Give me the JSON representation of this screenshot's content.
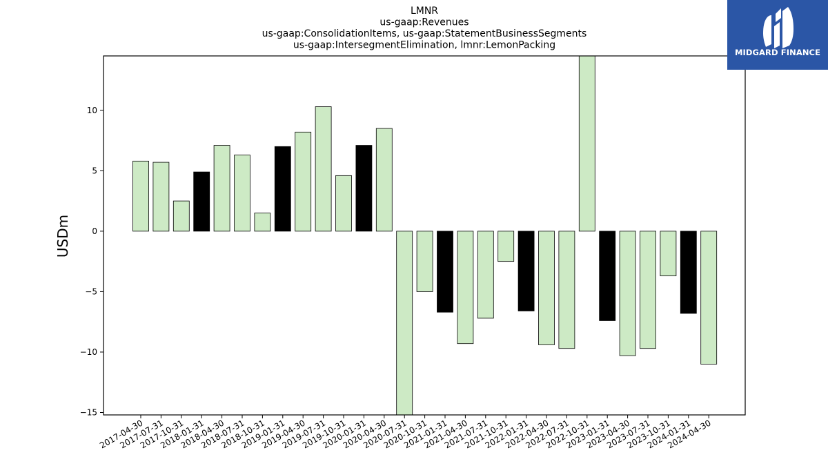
{
  "chart_data": {
    "type": "bar",
    "title_lines": [
      "LMNR",
      "us-gaap:Revenues",
      "us-gaap:ConsolidationItems, us-gaap:StatementBusinessSegments",
      "us-gaap:IntersegmentElimination, lmnr:LemonPacking"
    ],
    "ylabel": "USDm",
    "ylim": [
      -15.2,
      14.5
    ],
    "yticks": [
      -15,
      -10,
      -5,
      0,
      5,
      10
    ],
    "ytick_labels": [
      "−15",
      "−10",
      "−5",
      "0",
      "5",
      "10"
    ],
    "categories": [
      "2017-04-30",
      "2017-07-31",
      "2017-10-31",
      "2018-01-31",
      "2018-04-30",
      "2018-07-31",
      "2018-10-31",
      "2019-01-31",
      "2019-04-30",
      "2019-07-31",
      "2019-10-31",
      "2020-01-31",
      "2020-04-30",
      "2020-07-31",
      "2020-10-31",
      "2021-01-31",
      "2021-04-30",
      "2021-07-31",
      "2021-10-31",
      "2022-01-31",
      "2022-04-30",
      "2022-07-31",
      "2022-10-31",
      "2023-01-31",
      "2023-04-30",
      "2023-07-31",
      "2023-10-31",
      "2024-01-31",
      "2024-04-30"
    ],
    "values": [
      5.8,
      5.7,
      2.5,
      4.9,
      7.1,
      6.3,
      1.5,
      7.0,
      8.2,
      10.3,
      4.6,
      7.1,
      8.5,
      -15.2,
      -5.0,
      -6.7,
      -9.3,
      -7.2,
      -2.5,
      -6.6,
      -9.4,
      -9.7,
      14.5,
      -7.4,
      -10.3,
      -9.7,
      -3.7,
      -6.8,
      -11.0
    ],
    "highlight": [
      false,
      false,
      false,
      true,
      false,
      false,
      false,
      true,
      false,
      false,
      false,
      true,
      false,
      false,
      false,
      true,
      false,
      false,
      false,
      true,
      false,
      false,
      false,
      true,
      false,
      false,
      false,
      true,
      false
    ],
    "colors": {
      "bar": "#cdeac5",
      "highlight": "#000000",
      "edge": "#000000"
    },
    "grid": false,
    "legend": "none"
  },
  "logo": {
    "text": "MIDGARD FINANCE",
    "background": "#2b56a6"
  }
}
